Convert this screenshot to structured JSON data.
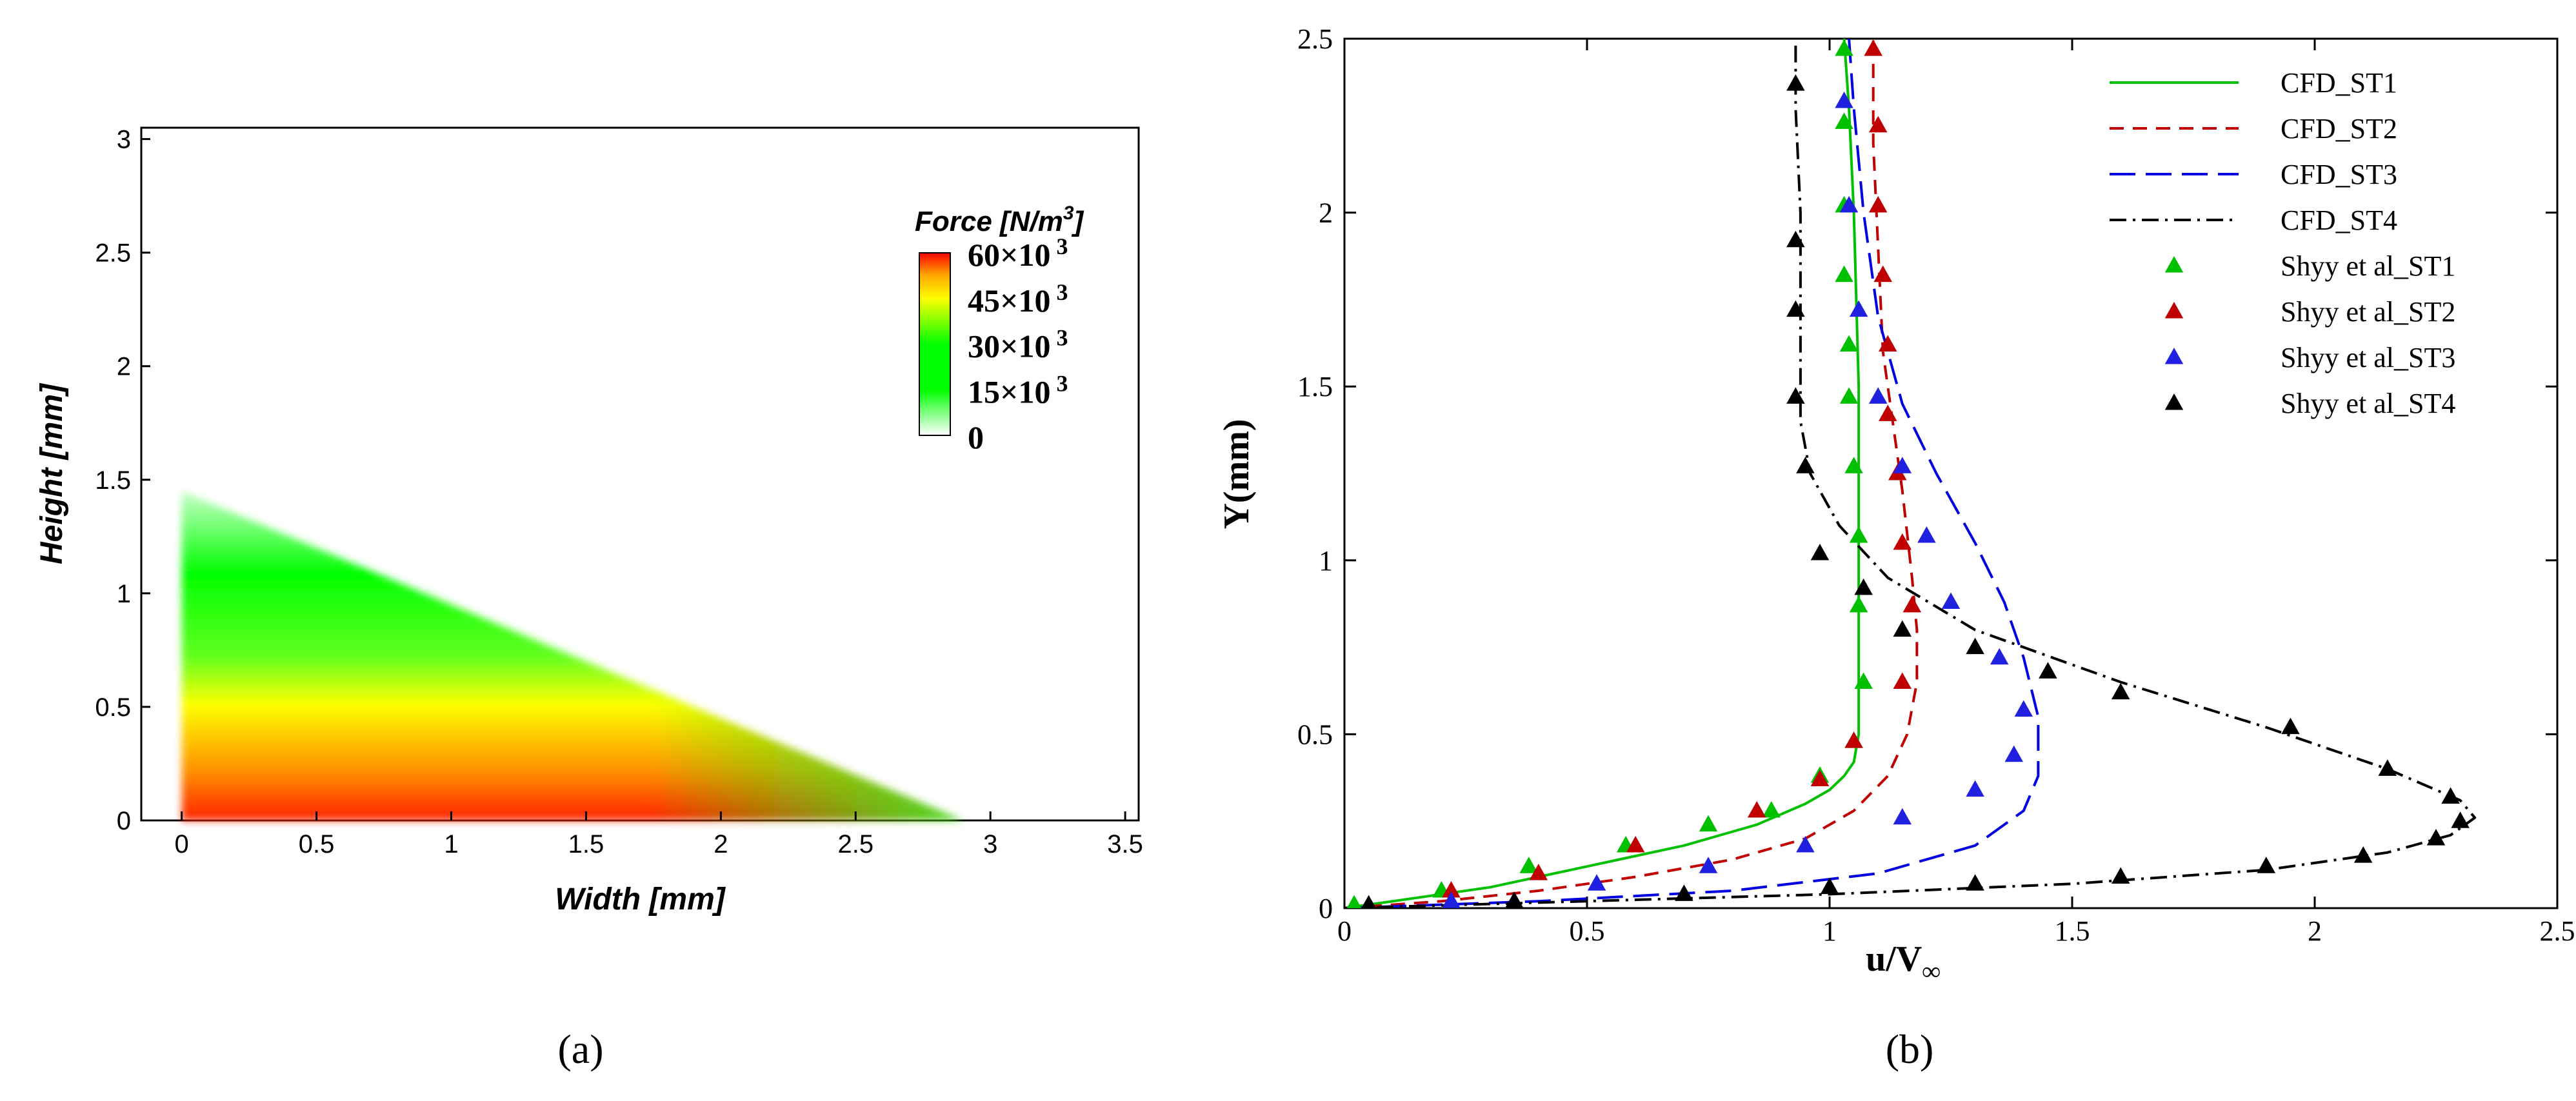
{
  "chart_data": [
    {
      "panel": "a",
      "type": "heatmap",
      "title": "",
      "xlabel": "Width [mm]",
      "ylabel": "Height [mm]",
      "xlim": [
        -0.15,
        3.55
      ],
      "ylim": [
        0,
        3.05
      ],
      "x_ticks": [
        "0",
        "0.5",
        "1",
        "1.5",
        "2",
        "2.5",
        "3",
        "3.5"
      ],
      "y_ticks": [
        "0",
        "0.5",
        "1",
        "1.5",
        "2",
        "2.5",
        "3"
      ],
      "region": {
        "shape": "triangle",
        "x_extent": [
          0.0,
          2.9
        ],
        "y_extent_at_wall": [
          0.0,
          1.45
        ]
      },
      "colorbar": {
        "title": "Force [N/m",
        "title_sup": "3",
        "title_close": "]",
        "labels": [
          {
            "value": 60000,
            "base": "60×10",
            "exp": "3"
          },
          {
            "value": 45000,
            "base": "45×10",
            "exp": "3"
          },
          {
            "value": 30000,
            "base": "30×10",
            "exp": "3"
          },
          {
            "value": 15000,
            "base": "15×10",
            "exp": "3"
          },
          {
            "value": 0,
            "base": "0",
            "exp": ""
          }
        ],
        "colors": [
          "#ff0000",
          "#ffa500",
          "#ffff00",
          "#00ff00",
          "#ffffff"
        ]
      },
      "panel_label": "(a)"
    },
    {
      "panel": "b",
      "type": "line",
      "title": "",
      "xlabel_base": "u/V",
      "xlabel_sub": "∞",
      "ylabel": "Y(mm)",
      "xlim": [
        0,
        2.5
      ],
      "ylim": [
        0,
        2.5
      ],
      "x_ticks": [
        "0",
        "0.5",
        "1",
        "1.5",
        "2",
        "2.5"
      ],
      "y_ticks": [
        "0",
        "0.5",
        "1",
        "1.5",
        "2",
        "2.5"
      ],
      "series": [
        {
          "name": "CFD_ST1",
          "kind": "line",
          "color": "#00c000",
          "dash": "solid",
          "x": [
            0,
            0.1,
            0.2,
            0.3,
            0.4,
            0.5,
            0.6,
            0.7,
            0.8,
            0.85,
            0.9,
            0.95,
            1.0,
            1.03,
            1.05,
            1.06,
            1.06,
            1.06,
            1.06,
            1.05,
            1.04,
            1.03
          ],
          "y": [
            0,
            0.02,
            0.04,
            0.06,
            0.09,
            0.12,
            0.15,
            0.18,
            0.22,
            0.24,
            0.27,
            0.3,
            0.34,
            0.38,
            0.42,
            0.5,
            0.7,
            1.0,
            1.5,
            2.0,
            2.3,
            2.5
          ]
        },
        {
          "name": "CFD_ST2",
          "kind": "line",
          "color": "#c00000",
          "dash": "dashed",
          "x": [
            0,
            0.2,
            0.4,
            0.6,
            0.8,
            0.95,
            1.05,
            1.12,
            1.16,
            1.18,
            1.18,
            1.17,
            1.15,
            1.13,
            1.11,
            1.1,
            1.09,
            1.09
          ],
          "y": [
            0,
            0.02,
            0.05,
            0.09,
            0.14,
            0.2,
            0.28,
            0.38,
            0.5,
            0.65,
            0.8,
            0.95,
            1.2,
            1.4,
            1.6,
            1.9,
            2.2,
            2.5
          ]
        },
        {
          "name": "CFD_ST3",
          "kind": "line",
          "color": "#0000e0",
          "dash": "longdash",
          "x": [
            0,
            0.4,
            0.8,
            1.1,
            1.3,
            1.4,
            1.43,
            1.43,
            1.4,
            1.36,
            1.3,
            1.22,
            1.15,
            1.1,
            1.07,
            1.05,
            1.04
          ],
          "y": [
            0,
            0.02,
            0.05,
            0.1,
            0.18,
            0.28,
            0.38,
            0.55,
            0.72,
            0.88,
            1.05,
            1.25,
            1.45,
            1.7,
            2.0,
            2.3,
            2.5
          ]
        },
        {
          "name": "CFD_ST4",
          "kind": "line",
          "color": "#000000",
          "dash": "dashdot",
          "x": [
            0,
            0.5,
            1.0,
            1.5,
            1.9,
            2.15,
            2.28,
            2.33,
            2.3,
            2.15,
            1.9,
            1.6,
            1.3,
            1.12,
            1.02,
            0.96,
            0.94,
            0.94,
            0.94,
            0.93,
            0.93
          ],
          "y": [
            0,
            0.02,
            0.04,
            0.07,
            0.11,
            0.16,
            0.21,
            0.26,
            0.31,
            0.4,
            0.52,
            0.65,
            0.8,
            0.95,
            1.1,
            1.25,
            1.4,
            1.7,
            2.0,
            2.3,
            2.5
          ]
        },
        {
          "name": "Shyy et al_ST1",
          "kind": "scatter",
          "color": "#00c000",
          "x": [
            0.02,
            0.2,
            0.38,
            0.58,
            0.75,
            0.88,
            0.98,
            1.05,
            1.07,
            1.06,
            1.06,
            1.05,
            1.04,
            1.04,
            1.03,
            1.03,
            1.03,
            1.03
          ],
          "y": [
            0.01,
            0.05,
            0.12,
            0.18,
            0.24,
            0.28,
            0.38,
            0.48,
            0.65,
            0.87,
            1.07,
            1.27,
            1.47,
            1.62,
            1.82,
            2.02,
            2.26,
            2.47
          ]
        },
        {
          "name": "Shyy et al_ST2",
          "kind": "scatter",
          "color": "#c00000",
          "x": [
            0.22,
            0.4,
            0.6,
            0.85,
            0.98,
            1.05,
            1.15,
            1.17,
            1.15,
            1.14,
            1.12,
            1.12,
            1.11,
            1.1,
            1.1,
            1.09
          ],
          "y": [
            0.05,
            0.1,
            0.18,
            0.28,
            0.37,
            0.48,
            0.65,
            0.87,
            1.05,
            1.25,
            1.42,
            1.62,
            1.82,
            2.02,
            2.25,
            2.47
          ]
        },
        {
          "name": "Shyy et al_ST3",
          "kind": "scatter",
          "color": "#2020e0",
          "x": [
            0.22,
            0.52,
            0.75,
            0.95,
            1.15,
            1.3,
            1.38,
            1.4,
            1.35,
            1.25,
            1.2,
            1.15,
            1.1,
            1.06,
            1.04,
            1.03
          ],
          "y": [
            0.02,
            0.07,
            0.12,
            0.18,
            0.26,
            0.34,
            0.44,
            0.57,
            0.72,
            0.88,
            1.07,
            1.27,
            1.47,
            1.72,
            2.02,
            2.32
          ]
        },
        {
          "name": "Shyy et al_ST4",
          "kind": "scatter",
          "color": "#000000",
          "x": [
            0.05,
            0.35,
            0.7,
            1.0,
            1.3,
            1.6,
            1.9,
            2.1,
            2.25,
            2.3,
            2.28,
            2.15,
            1.95,
            1.6,
            1.45,
            1.3,
            1.15,
            1.07,
            0.98,
            0.95,
            0.93,
            0.93,
            0.93,
            0.93
          ],
          "y": [
            0.01,
            0.02,
            0.04,
            0.06,
            0.07,
            0.09,
            0.12,
            0.15,
            0.2,
            0.25,
            0.32,
            0.4,
            0.52,
            0.62,
            0.68,
            0.75,
            0.8,
            0.92,
            1.02,
            1.27,
            1.47,
            1.72,
            1.92,
            2.37
          ]
        }
      ],
      "legend": {
        "placement": "top-right"
      },
      "panel_label": "(b)"
    }
  ]
}
